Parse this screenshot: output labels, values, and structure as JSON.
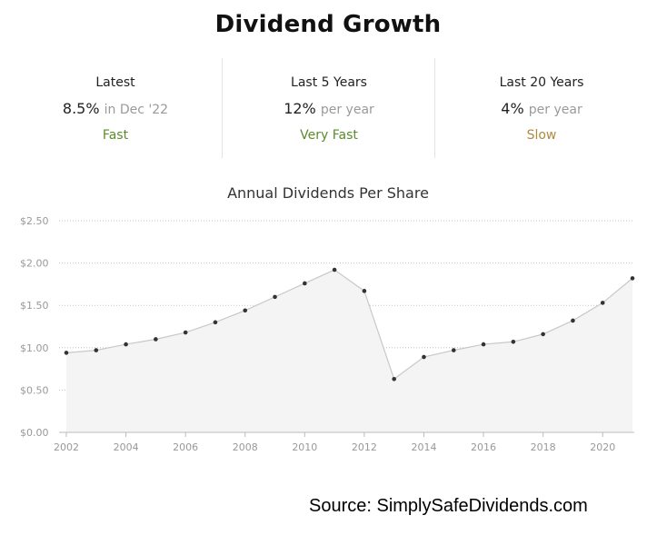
{
  "title": "Dividend Growth",
  "stats": [
    {
      "label": "Latest",
      "value": "8.5%",
      "suffix": "in Dec '22",
      "rating": "Fast",
      "rating_color": "#5b8c2a"
    },
    {
      "label": "Last 5 Years",
      "value": "12%",
      "suffix": "per year",
      "rating": "Very Fast",
      "rating_color": "#5b8c2a"
    },
    {
      "label": "Last 20 Years",
      "value": "4%",
      "suffix": "per year",
      "rating": "Slow",
      "rating_color": "#b08a3c"
    }
  ],
  "chart_data": {
    "type": "area",
    "title": "Annual Dividends Per Share",
    "xlabel": "",
    "ylabel": "",
    "x": [
      2002,
      2003,
      2004,
      2005,
      2006,
      2007,
      2008,
      2009,
      2010,
      2011,
      2012,
      2013,
      2014,
      2015,
      2016,
      2017,
      2018,
      2019,
      2020,
      2021
    ],
    "values": [
      0.94,
      0.97,
      1.04,
      1.1,
      1.18,
      1.3,
      1.44,
      1.6,
      1.76,
      1.92,
      1.67,
      0.63,
      0.89,
      0.97,
      1.04,
      1.07,
      1.16,
      1.32,
      1.53,
      1.82
    ],
    "xlim": [
      2002,
      2021
    ],
    "ylim": [
      0,
      2.5
    ],
    "yticks": [
      "$0.00",
      "$0.50",
      "$1.00",
      "$1.50",
      "$2.00",
      "$2.50"
    ],
    "ytick_values": [
      0,
      0.5,
      1.0,
      1.5,
      2.0,
      2.5
    ],
    "xticks": [
      2002,
      2004,
      2006,
      2008,
      2010,
      2012,
      2014,
      2016,
      2018,
      2020
    ],
    "grid": true,
    "line_color": "#c8c8c8",
    "fill_color": "#f4f4f4",
    "point_color": "#333333"
  },
  "source": "Source: SimplySafeDividends.com"
}
